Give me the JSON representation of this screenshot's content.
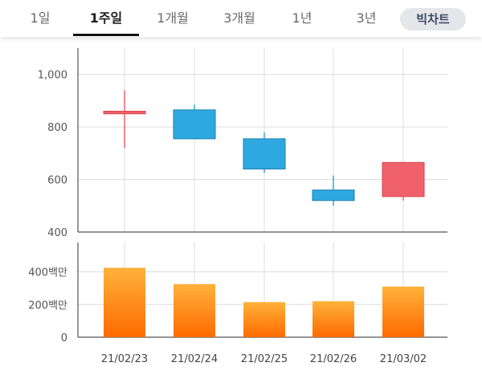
{
  "tabs": [
    {
      "label": "1일"
    },
    {
      "label": "1주일"
    },
    {
      "label": "1개월"
    },
    {
      "label": "3개월"
    },
    {
      "label": "1년"
    },
    {
      "label": "3년"
    }
  ],
  "active_tab": "1주일",
  "bigchart_label": "빅차트",
  "colors": {
    "up": "#f0616b",
    "down": "#2ea8e0",
    "volume_top": "#ffb23a",
    "volume_bottom": "#ff6a00"
  },
  "chart_data": [
    {
      "type": "candlestick",
      "categories": [
        "21/02/23",
        "21/02/24",
        "21/02/25",
        "21/02/26",
        "21/03/02"
      ],
      "ohlc": [
        {
          "open": 850,
          "high": 940,
          "low": 720,
          "close": 860
        },
        {
          "open": 865,
          "high": 885,
          "low": 755,
          "close": 755
        },
        {
          "open": 755,
          "high": 780,
          "low": 625,
          "close": 640
        },
        {
          "open": 560,
          "high": 615,
          "low": 500,
          "close": 520
        },
        {
          "open": 535,
          "high": 665,
          "low": 520,
          "close": 665
        }
      ],
      "ylim": [
        400,
        1100
      ],
      "yticks": [
        400,
        600,
        800,
        1000
      ],
      "ytick_labels": [
        "400",
        "600",
        "800",
        "1,000"
      ],
      "grid": true
    },
    {
      "type": "bar",
      "categories": [
        "21/02/23",
        "21/02/24",
        "21/02/25",
        "21/02/26",
        "21/03/02"
      ],
      "values": [
        425,
        325,
        215,
        220,
        310
      ],
      "ylim": [
        0,
        580
      ],
      "yticks": [
        0,
        200,
        400
      ],
      "ytick_labels": [
        "0",
        "200백만",
        "400백만"
      ],
      "grid": true
    }
  ]
}
